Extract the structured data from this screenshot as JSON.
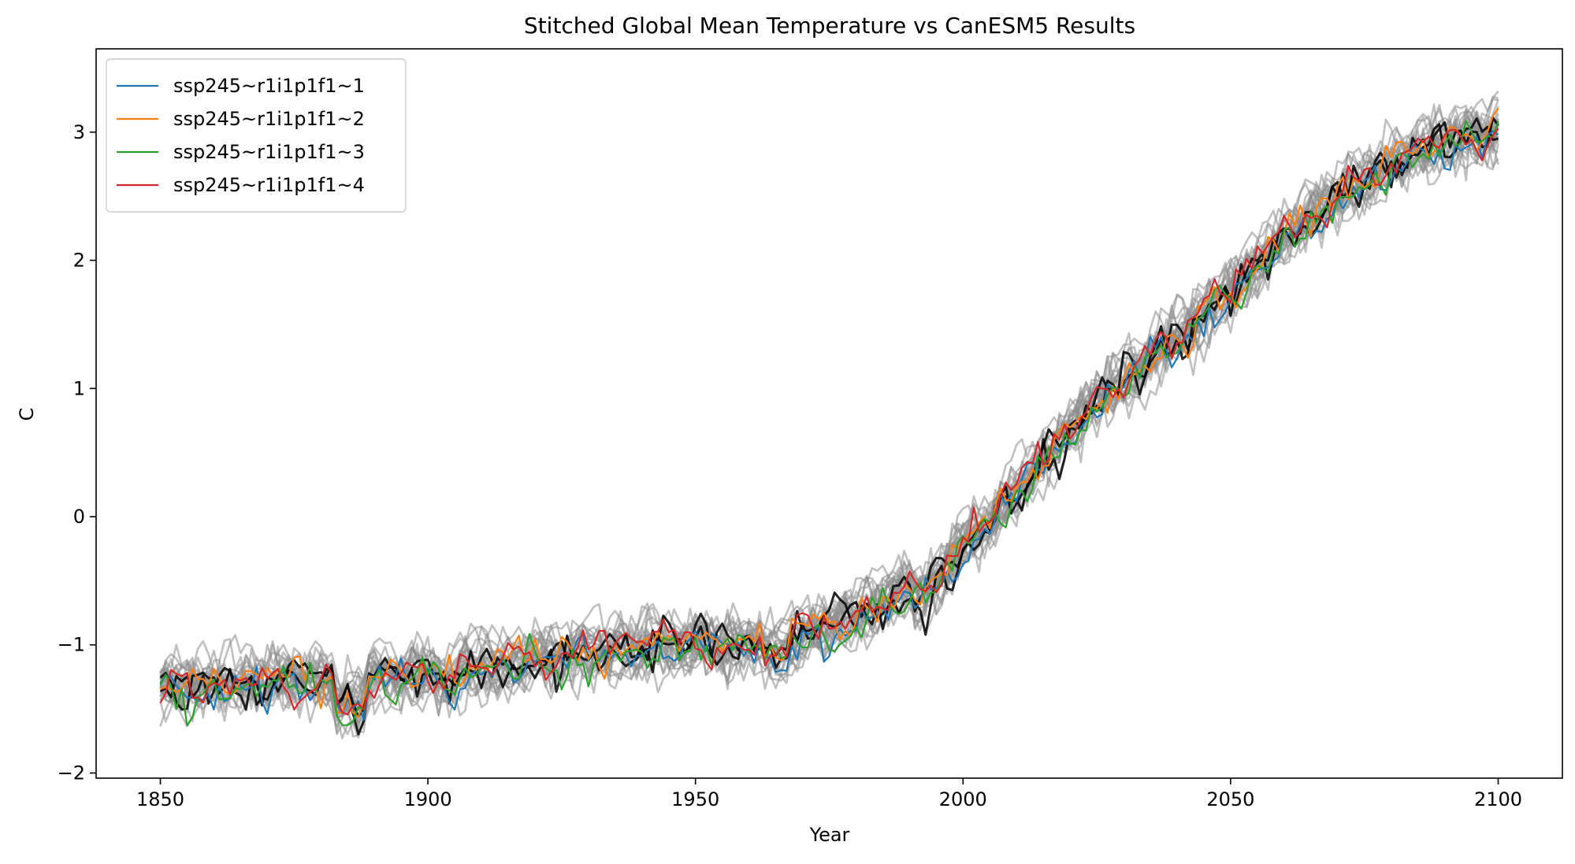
{
  "chart_data": {
    "type": "line",
    "title": "Stitched Global Mean Temperature vs CanESM5 Results",
    "xlabel": "Year",
    "ylabel": "C",
    "xlim": [
      1838,
      2112
    ],
    "ylim": [
      -2.04,
      3.65
    ],
    "xticks": [
      1850,
      1900,
      1950,
      2000,
      2050,
      2100
    ],
    "yticks": [
      -2,
      -1,
      0,
      1,
      2,
      3
    ],
    "ytick_labels": [
      "−2",
      "−1",
      "0",
      "1",
      "2",
      "3"
    ],
    "grid": false,
    "legend_position": "upper-left",
    "background_ensemble": {
      "description_color": "gray",
      "color": "#8c8c8c",
      "opacity": 0.55,
      "count": 25,
      "x_start": 1850,
      "x_end": 2100
    },
    "anchor_curve": {
      "x": [
        1850,
        1860,
        1870,
        1880,
        1890,
        1900,
        1910,
        1920,
        1930,
        1940,
        1950,
        1960,
        1970,
        1975,
        1980,
        1985,
        1990,
        1995,
        2000,
        2005,
        2010,
        2015,
        2020,
        2025,
        2030,
        2035,
        2040,
        2045,
        2050,
        2055,
        2060,
        2065,
        2070,
        2075,
        2080,
        2085,
        2090,
        2095,
        2100
      ],
      "y": [
        -1.32,
        -1.28,
        -1.25,
        -1.27,
        -1.22,
        -1.2,
        -1.16,
        -1.1,
        -1.05,
        -1.0,
        -0.98,
        -0.97,
        -0.9,
        -0.84,
        -0.75,
        -0.65,
        -0.55,
        -0.48,
        -0.2,
        0.0,
        0.22,
        0.45,
        0.7,
        0.92,
        1.08,
        1.25,
        1.42,
        1.6,
        1.78,
        1.98,
        2.18,
        2.36,
        2.5,
        2.64,
        2.78,
        2.88,
        2.95,
        3.0,
        3.02
      ]
    },
    "series": [
      {
        "name": "ssp245~r1i1p1f1~1",
        "color": "#1f77b4"
      },
      {
        "name": "ssp245~r1i1p1f1~2",
        "color": "#ff7f0e"
      },
      {
        "name": "ssp245~r1i1p1f1~3",
        "color": "#2ca02c"
      },
      {
        "name": "ssp245~r1i1p1f1~4",
        "color": "#d62728"
      }
    ]
  }
}
